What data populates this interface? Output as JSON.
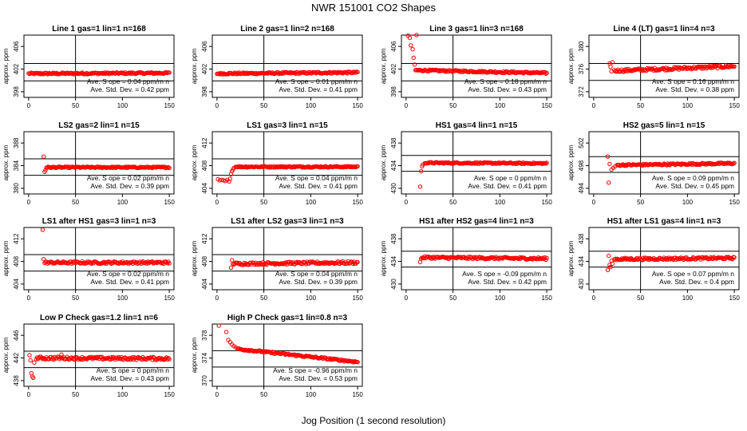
{
  "figure": {
    "title": "NWR  151001  CO2 Shapes",
    "xlabel": "Jog Position (1 second resolution)"
  },
  "colors": {
    "points": "#ff0000",
    "axes": "#000000"
  },
  "chart_data": [
    {
      "type": "scatter",
      "title": "Line 1 gas=1 lin=1 n=168",
      "ylabel": "approx. ppm",
      "xlim": [
        -5,
        155
      ],
      "xticks": [
        0,
        50,
        100,
        150
      ],
      "ylim": [
        397,
        408
      ],
      "yticks": [
        398,
        402,
        406
      ],
      "hlines": [
        403.0,
        399.9
      ],
      "vline": 50,
      "slope_label": "Ave. S ope =  0.04  ppm/m n",
      "sd_label": "Ave. Std. Dev. =  0.42  ppm",
      "series": {
        "x_start": 0,
        "x_end": 150,
        "y_start": 401.2,
        "y_end": 401.3,
        "noise": 0.15,
        "leading": []
      }
    },
    {
      "type": "scatter",
      "title": "Line 2 gas=1 lin=2 n=168",
      "ylabel": "approx. ppm",
      "xlim": [
        -5,
        155
      ],
      "xticks": [
        0,
        50,
        100,
        150
      ],
      "ylim": [
        397,
        408
      ],
      "yticks": [
        398,
        402,
        406
      ],
      "hlines": [
        403.0,
        399.9
      ],
      "vline": 50,
      "slope_label": "Ave. S ope =  0.01  ppm/m n",
      "sd_label": "Ave. Std. Dev. =  0.41  ppm",
      "series": {
        "x_start": 0,
        "x_end": 150,
        "y_start": 401.2,
        "y_end": 401.4,
        "noise": 0.15,
        "leading": []
      }
    },
    {
      "type": "scatter",
      "title": "Line 3 gas=1 lin=3 n=168",
      "ylabel": "approx. ppm",
      "xlim": [
        -5,
        155
      ],
      "xticks": [
        0,
        50,
        100,
        150
      ],
      "ylim": [
        397,
        408
      ],
      "yticks": [
        398,
        402,
        406
      ],
      "hlines": [
        403.0,
        399.9
      ],
      "vline": 50,
      "slope_label": "Ave. S ope =  0.18  ppm/m n",
      "sd_label": "Ave. Std. Dev. =  0.43  ppm",
      "series": {
        "x_start": 10,
        "x_end": 150,
        "y_start": 401.8,
        "y_end": 401.3,
        "noise": 0.15,
        "leading": [
          [
            2,
            407.9
          ],
          [
            4,
            407.5
          ],
          [
            5,
            406.2
          ],
          [
            7,
            405.5
          ],
          [
            8,
            404.0
          ],
          [
            9,
            402.8
          ],
          [
            11,
            408.0
          ]
        ]
      }
    },
    {
      "type": "scatter",
      "title": "Line 4 (LT) gas=1 lin=4 n=3",
      "ylabel": "approx. ppm",
      "xlim": [
        -5,
        155
      ],
      "xticks": [
        0,
        50,
        100,
        150
      ],
      "ylim": [
        371,
        382
      ],
      "yticks": [
        372,
        376,
        380
      ],
      "hlines": [
        377.0,
        374.0
      ],
      "vline": 50,
      "slope_label": "Ave. S ope =  0.16  ppm/m n",
      "sd_label": "Ave. Std. Dev. =  0.38  ppm",
      "series": {
        "x_start": 22,
        "x_end": 150,
        "y_start": 375.7,
        "y_end": 376.5,
        "noise": 0.25,
        "leading": [
          [
            17,
            377.0
          ],
          [
            18,
            376.4
          ],
          [
            19,
            375.6
          ],
          [
            20,
            377.2
          ]
        ]
      }
    },
    {
      "type": "scatter",
      "title": "LS2 gas=2 lin=1 n=15",
      "ylabel": "approx. ppm",
      "xlim": [
        -5,
        155
      ],
      "xticks": [
        0,
        50,
        100,
        150
      ],
      "ylim": [
        379,
        390
      ],
      "yticks": [
        380,
        384,
        388
      ],
      "hlines": [
        385.2,
        382.3
      ],
      "vline": 50,
      "slope_label": "Ave. S ope =  0.02  ppm/m n",
      "sd_label": "Ave. Std. Dev. =  0.39  ppm",
      "series": {
        "x_start": 19,
        "x_end": 150,
        "y_start": 383.7,
        "y_end": 383.7,
        "noise": 0.12,
        "leading": [
          [
            16,
            385.6
          ],
          [
            17,
            382.9
          ],
          [
            18,
            383.2
          ]
        ]
      }
    },
    {
      "type": "scatter",
      "title": "LS1 gas=3 lin=1 n=15",
      "ylabel": "approx. ppm",
      "xlim": [
        -5,
        155
      ],
      "xticks": [
        0,
        50,
        100,
        150
      ],
      "ylim": [
        403,
        414
      ],
      "yticks": [
        404,
        408,
        412
      ],
      "hlines": [
        409.2,
        406.3
      ],
      "vline": 50,
      "slope_label": "Ave. S ope =  0.04  ppm/m n",
      "sd_label": "Ave. Std. Dev. =  0.41  ppm",
      "series": {
        "x_start": 20,
        "x_end": 150,
        "y_start": 407.8,
        "y_end": 407.8,
        "noise": 0.12,
        "leading": [
          [
            1,
            405.6
          ],
          [
            3,
            405.4
          ],
          [
            5,
            405.5
          ],
          [
            7,
            405.4
          ],
          [
            9,
            405.3
          ],
          [
            11,
            405.5
          ],
          [
            13,
            405.2
          ],
          [
            14,
            405.7
          ],
          [
            15,
            406.5
          ],
          [
            16,
            407.0
          ],
          [
            17,
            407.3
          ],
          [
            18,
            407.6
          ]
        ]
      }
    },
    {
      "type": "scatter",
      "title": "HS1 gas=4 lin=1 n=15",
      "ylabel": "approx. ppm",
      "xlim": [
        -5,
        155
      ],
      "xticks": [
        0,
        50,
        100,
        150
      ],
      "ylim": [
        429,
        440
      ],
      "yticks": [
        430,
        434,
        438
      ],
      "hlines": [
        435.8,
        433.0
      ],
      "vline": 50,
      "slope_label": "Ave. S ope =  0  ppm/m n",
      "sd_label": "Ave. Std. Dev. =  0.41  ppm",
      "series": {
        "x_start": 20,
        "x_end": 150,
        "y_start": 434.5,
        "y_end": 434.4,
        "noise": 0.12,
        "leading": [
          [
            15,
            430.3
          ],
          [
            16,
            433.0
          ],
          [
            17,
            433.9
          ],
          [
            18,
            434.2
          ]
        ]
      }
    },
    {
      "type": "scatter",
      "title": "HS2 gas=5 lin=1 n=15",
      "ylabel": "approx. ppm",
      "xlim": [
        -5,
        155
      ],
      "xticks": [
        0,
        50,
        100,
        150
      ],
      "ylim": [
        493,
        504
      ],
      "yticks": [
        494,
        498,
        502
      ],
      "hlines": [
        499.6,
        496.8
      ],
      "vline": 50,
      "slope_label": "Ave. S ope =  0.09  ppm/m n",
      "sd_label": "Ave. Std. Dev. =  0.45  ppm",
      "series": {
        "x_start": 25,
        "x_end": 150,
        "y_start": 498.1,
        "y_end": 498.4,
        "noise": 0.15,
        "leading": [
          [
            15,
            499.6
          ],
          [
            16,
            495.0
          ],
          [
            17,
            498.3
          ],
          [
            19,
            497.3
          ],
          [
            21,
            497.6
          ],
          [
            23,
            497.9
          ]
        ]
      }
    },
    {
      "type": "scatter",
      "title": "LS1 after HS1 gas=3 lin=1 n=3",
      "ylabel": "approx. ppm",
      "xlim": [
        -5,
        155
      ],
      "xticks": [
        0,
        50,
        100,
        150
      ],
      "ylim": [
        403,
        414
      ],
      "yticks": [
        404,
        408,
        412
      ],
      "hlines": [
        409.2,
        406.3
      ],
      "vline": 50,
      "slope_label": "Ave. S ope =  0.02  ppm/m n",
      "sd_label": "Ave. Std. Dev. =  0.41  ppm",
      "series": {
        "x_start": 17,
        "x_end": 150,
        "y_start": 407.8,
        "y_end": 407.8,
        "noise": 0.2,
        "leading": [
          [
            15,
            413.6
          ],
          [
            16,
            408.4
          ]
        ]
      }
    },
    {
      "type": "scatter",
      "title": "LS1 after LS2 gas=3 lin=1 n=3",
      "ylabel": "approx. ppm",
      "xlim": [
        -5,
        155
      ],
      "xticks": [
        0,
        50,
        100,
        150
      ],
      "ylim": [
        403,
        414
      ],
      "yticks": [
        404,
        408,
        412
      ],
      "hlines": [
        409.2,
        406.3
      ],
      "vline": 50,
      "slope_label": "Ave. S ope =  0.04  ppm/m n",
      "sd_label": "Ave. Std. Dev. =  0.39  ppm",
      "series": {
        "x_start": 18,
        "x_end": 150,
        "y_start": 407.6,
        "y_end": 407.8,
        "noise": 0.22,
        "leading": [
          [
            15,
            406.9
          ],
          [
            16,
            408.2
          ],
          [
            17,
            407.6
          ]
        ]
      }
    },
    {
      "type": "scatter",
      "title": "HS1 after HS2 gas=4 lin=1 n=3",
      "ylabel": "approx. ppm",
      "xlim": [
        -5,
        155
      ],
      "xticks": [
        0,
        50,
        100,
        150
      ],
      "ylim": [
        429,
        440
      ],
      "yticks": [
        430,
        434,
        438
      ],
      "hlines": [
        435.8,
        433.0
      ],
      "vline": 50,
      "slope_label": "Ave. S ope = -0.09  ppm/m n",
      "sd_label": "Ave. Std. Dev. =  0.42  ppm",
      "series": {
        "x_start": 17,
        "x_end": 150,
        "y_start": 434.7,
        "y_end": 434.5,
        "noise": 0.2,
        "leading": [
          [
            15,
            433.9
          ],
          [
            16,
            434.5
          ]
        ]
      }
    },
    {
      "type": "scatter",
      "title": "HS1 after LS1 gas=4 lin=1 n=3",
      "ylabel": "approx. ppm",
      "xlim": [
        -5,
        155
      ],
      "xticks": [
        0,
        50,
        100,
        150
      ],
      "ylim": [
        429,
        440
      ],
      "yticks": [
        430,
        434,
        438
      ],
      "hlines": [
        435.8,
        433.0
      ],
      "vline": 50,
      "slope_label": "Ave. S ope =  0.07  ppm/m n",
      "sd_label": "Ave. Std. Dev. =  0.4  ppm",
      "series": {
        "x_start": 22,
        "x_end": 150,
        "y_start": 434.4,
        "y_end": 434.6,
        "noise": 0.2,
        "leading": [
          [
            15,
            432.5
          ],
          [
            16,
            435.0
          ],
          [
            17,
            433.4
          ],
          [
            18,
            433.0
          ],
          [
            19,
            434.1
          ],
          [
            20,
            433.6
          ]
        ]
      }
    },
    {
      "type": "scatter",
      "title": "Low P Check gas=1.2 lin=1 n=6",
      "ylabel": "approx. ppm",
      "xlim": [
        -5,
        155
      ],
      "xticks": [
        0,
        50,
        100,
        150
      ],
      "ylim": [
        437,
        448
      ],
      "yticks": [
        438,
        442,
        446
      ],
      "hlines": [
        443.2,
        440.3
      ],
      "vline": 50,
      "slope_label": "Ave. S ope =  0  ppm/m n",
      "sd_label": "Ave. Std. Dev. =  0.43  ppm",
      "series": {
        "x_start": 8,
        "x_end": 150,
        "y_start": 442.0,
        "y_end": 441.9,
        "noise": 0.25,
        "leading": [
          [
            1,
            442.5
          ],
          [
            2,
            441.6
          ],
          [
            3,
            439.3
          ],
          [
            4,
            438.7
          ],
          [
            5,
            438.5
          ],
          [
            6,
            441.2
          ],
          [
            35,
            442.6
          ]
        ]
      }
    },
    {
      "type": "scatter",
      "title": "High P Check gas=1 lin=0.8 n=3",
      "ylabel": "approx. ppm",
      "xlim": [
        -5,
        155
      ],
      "xticks": [
        0,
        50,
        100,
        150
      ],
      "ylim": [
        369,
        380
      ],
      "yticks": [
        370,
        374,
        378
      ],
      "hlines": [
        375.3,
        372.4
      ],
      "vline": 50,
      "slope_label": "Ave. S ope = -0.96  ppm/m n",
      "sd_label": "Ave. Std. Dev. =  0.53  ppm",
      "series": {
        "x_start": 22,
        "x_end": 150,
        "y_start": 375.6,
        "y_end": 373.3,
        "noise": 0.15,
        "leading": [
          [
            2,
            379.7
          ],
          [
            10,
            378.6
          ],
          [
            12,
            377.2
          ],
          [
            14,
            376.8
          ],
          [
            16,
            376.4
          ],
          [
            18,
            376.1
          ],
          [
            20,
            375.9
          ]
        ]
      }
    }
  ]
}
